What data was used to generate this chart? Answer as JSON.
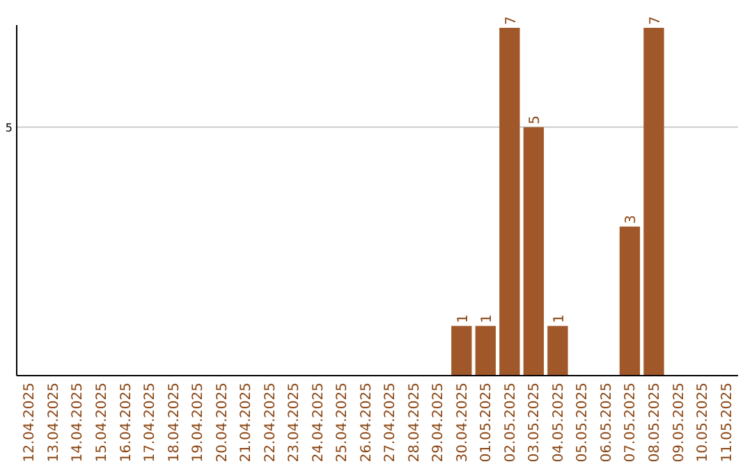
{
  "chart_data": {
    "type": "bar",
    "categories": [
      "12.04.2025",
      "13.04.2025",
      "14.04.2025",
      "15.04.2025",
      "16.04.2025",
      "17.04.2025",
      "18.04.2025",
      "19.04.2025",
      "20.04.2025",
      "21.04.2025",
      "22.04.2025",
      "23.04.2025",
      "24.04.2025",
      "25.04.2025",
      "26.04.2025",
      "27.04.2025",
      "28.04.2025",
      "29.04.2025",
      "30.04.2025",
      "01.05.2025",
      "02.05.2025",
      "03.05.2025",
      "04.05.2025",
      "05.05.2025",
      "06.05.2025",
      "07.05.2025",
      "08.05.2025",
      "09.05.2025",
      "10.05.2025",
      "11.05.2025"
    ],
    "values": [
      null,
      null,
      null,
      null,
      null,
      null,
      null,
      null,
      null,
      null,
      null,
      null,
      null,
      null,
      null,
      null,
      null,
      null,
      1,
      1,
      7,
      5,
      1,
      null,
      null,
      3,
      7,
      null,
      null,
      null
    ],
    "value_labels": [
      null,
      null,
      null,
      null,
      null,
      null,
      null,
      null,
      null,
      null,
      null,
      null,
      null,
      null,
      null,
      null,
      null,
      null,
      "1",
      "1",
      "7",
      "5",
      "1",
      null,
      null,
      "3",
      "7",
      null,
      null,
      null
    ],
    "ylim": [
      0,
      7
    ],
    "color": "#a0582a",
    "ref_lines": [
      {
        "axis": "y",
        "value": 5,
        "label": "5",
        "color": "#cccccc"
      }
    ]
  }
}
